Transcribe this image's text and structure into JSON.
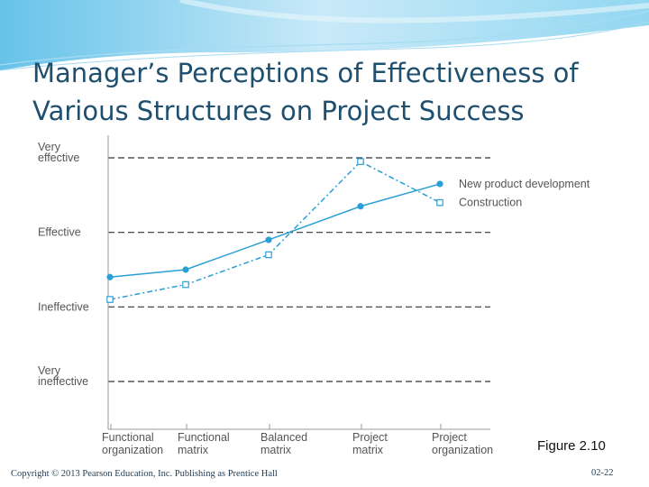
{
  "slide": {
    "title_line1": "Manager’s Perceptions of Effectiveness of",
    "title_line2": "Various Structures on Project Success",
    "figure_label": "Figure 2.10",
    "copyright": "Copyright © 2013 Pearson Education, Inc. Publishing as Prentice Hall",
    "page_number": "02-22"
  },
  "colors": {
    "accent": "#2a9fd6",
    "title": "#1f4f6f",
    "banner_light": "#bfe6f7",
    "banner_dark": "#4cb8e6"
  },
  "chart_data": {
    "type": "line",
    "title": "",
    "xlabel": "",
    "ylabel": "",
    "categories": [
      [
        "Functional",
        "organization"
      ],
      [
        "Functional",
        "matrix"
      ],
      [
        "Balanced",
        "matrix"
      ],
      [
        "Project",
        "matrix"
      ],
      [
        "Project",
        "organization"
      ]
    ],
    "y_levels": [
      [
        "Very",
        "ineffective"
      ],
      [
        "Ineffective"
      ],
      [
        "Effective"
      ],
      [
        "Very",
        "effective"
      ]
    ],
    "ylim": [
      1,
      4
    ],
    "grid": "dashed horizontal lines at each effectiveness level",
    "legend": "inline labels at the end of each series (right)",
    "series": [
      {
        "name": "New product development",
        "marker": "filled-circle",
        "line": "solid",
        "values": [
          2.4,
          2.5,
          2.9,
          3.35,
          3.65
        ]
      },
      {
        "name": "Construction",
        "marker": "open-square",
        "line": "dash-dot",
        "values": [
          2.1,
          2.3,
          2.7,
          3.95,
          3.4
        ]
      }
    ]
  }
}
